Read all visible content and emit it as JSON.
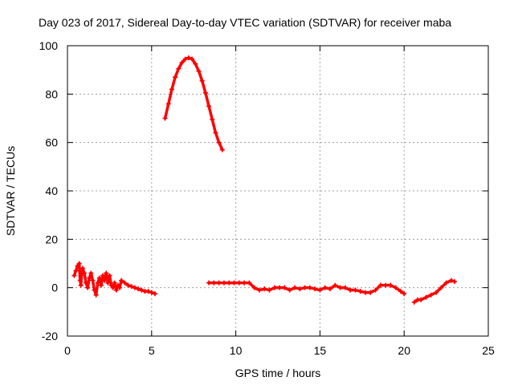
{
  "chart_data": {
    "type": "scatter",
    "title": "Day 023 of 2017, Sidereal Day-to-day VTEC variation (SDTVAR) for receiver maba",
    "xlabel": "GPS time / hours",
    "ylabel": "SDTVAR / TECUs",
    "xlim": [
      0,
      25
    ],
    "ylim": [
      -20,
      100
    ],
    "xticks": [
      0,
      5,
      10,
      15,
      20,
      25
    ],
    "yticks": [
      -20,
      0,
      20,
      40,
      60,
      80,
      100
    ],
    "grid": true,
    "legend": "none",
    "series": [
      {
        "name": "SDTVAR",
        "color": "#ff0000",
        "marker": "plus",
        "points": [
          [
            0.4,
            5
          ],
          [
            0.5,
            7
          ],
          [
            0.6,
            9
          ],
          [
            0.7,
            10
          ],
          [
            0.75,
            3
          ],
          [
            0.8,
            1
          ],
          [
            0.85,
            6
          ],
          [
            0.9,
            8
          ],
          [
            1.0,
            6
          ],
          [
            1.1,
            2
          ],
          [
            1.2,
            0
          ],
          [
            1.3,
            4
          ],
          [
            1.4,
            6
          ],
          [
            1.5,
            3
          ],
          [
            1.6,
            -1
          ],
          [
            1.7,
            -3
          ],
          [
            1.8,
            2
          ],
          [
            1.9,
            4
          ],
          [
            2.0,
            1
          ],
          [
            2.1,
            5
          ],
          [
            2.2,
            3
          ],
          [
            2.3,
            6
          ],
          [
            2.4,
            2
          ],
          [
            2.5,
            5
          ],
          [
            2.6,
            1
          ],
          [
            2.7,
            0
          ],
          [
            2.8,
            2
          ],
          [
            2.9,
            -1
          ],
          [
            3.0,
            1
          ],
          [
            3.1,
            0
          ],
          [
            3.2,
            3
          ],
          [
            3.4,
            2
          ],
          [
            3.6,
            1
          ],
          [
            3.8,
            0.5
          ],
          [
            4.0,
            0
          ],
          [
            4.2,
            -0.5
          ],
          [
            4.4,
            -1
          ],
          [
            4.6,
            -1.5
          ],
          [
            4.8,
            -1.5
          ],
          [
            5.0,
            -2
          ],
          [
            5.2,
            -2.5
          ],
          [
            5.8,
            70
          ],
          [
            6.0,
            76
          ],
          [
            6.2,
            82
          ],
          [
            6.4,
            87
          ],
          [
            6.6,
            90.5
          ],
          [
            6.8,
            93
          ],
          [
            7.0,
            94.5
          ],
          [
            7.2,
            95
          ],
          [
            7.4,
            94.5
          ],
          [
            7.6,
            92.5
          ],
          [
            7.8,
            89.5
          ],
          [
            8.0,
            85.5
          ],
          [
            8.2,
            80.5
          ],
          [
            8.4,
            75
          ],
          [
            8.6,
            69.5
          ],
          [
            8.8,
            64
          ],
          [
            9.0,
            60
          ],
          [
            9.2,
            57
          ],
          [
            8.4,
            2
          ],
          [
            8.7,
            2
          ],
          [
            9.0,
            2
          ],
          [
            9.3,
            2
          ],
          [
            9.6,
            2
          ],
          [
            9.9,
            2
          ],
          [
            10.2,
            2
          ],
          [
            10.5,
            2
          ],
          [
            10.8,
            2
          ],
          [
            11.1,
            0
          ],
          [
            11.4,
            -1
          ],
          [
            11.7,
            -0.5
          ],
          [
            12.0,
            -1
          ],
          [
            12.3,
            0
          ],
          [
            12.6,
            0
          ],
          [
            12.9,
            0
          ],
          [
            13.2,
            -1
          ],
          [
            13.5,
            0
          ],
          [
            13.8,
            -0.5
          ],
          [
            14.1,
            0
          ],
          [
            14.4,
            0
          ],
          [
            14.7,
            -0.5
          ],
          [
            15.0,
            -1
          ],
          [
            15.3,
            0
          ],
          [
            15.6,
            -0.5
          ],
          [
            15.9,
            1
          ],
          [
            16.2,
            0
          ],
          [
            16.5,
            0
          ],
          [
            16.8,
            -1
          ],
          [
            17.1,
            -1
          ],
          [
            17.4,
            -1.5
          ],
          [
            17.7,
            -2
          ],
          [
            18.0,
            -2
          ],
          [
            18.3,
            -1
          ],
          [
            18.6,
            1
          ],
          [
            18.9,
            1
          ],
          [
            19.2,
            1
          ],
          [
            19.5,
            0
          ],
          [
            19.8,
            -1.5
          ],
          [
            20.0,
            -2.5
          ],
          [
            20.6,
            -6
          ],
          [
            20.8,
            -5
          ],
          [
            21.0,
            -5
          ],
          [
            21.3,
            -4
          ],
          [
            21.6,
            -3
          ],
          [
            21.9,
            -2
          ],
          [
            22.2,
            0
          ],
          [
            22.5,
            2
          ],
          [
            22.8,
            3
          ],
          [
            23.0,
            2.5
          ]
        ]
      }
    ]
  }
}
